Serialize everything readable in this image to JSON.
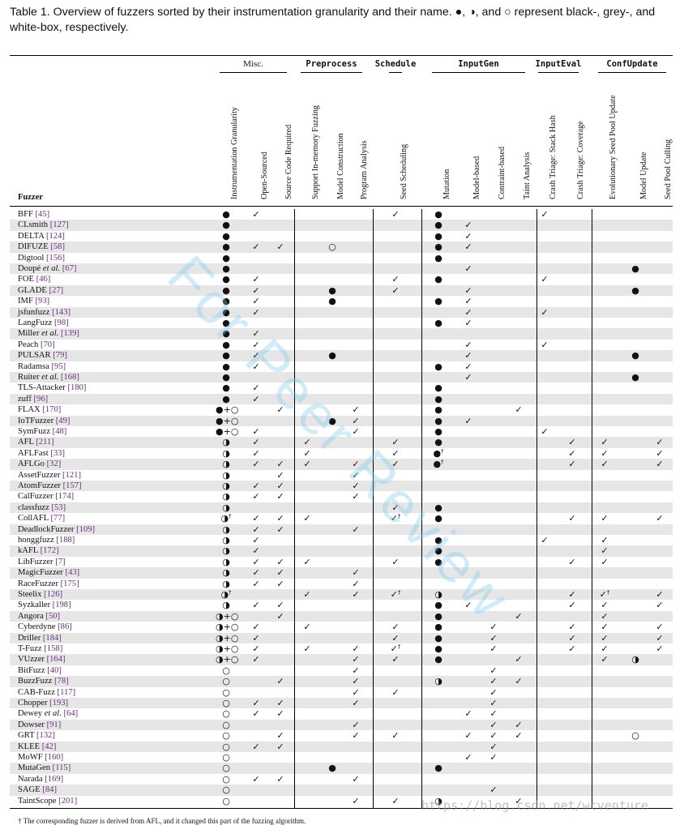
{
  "caption": "Table 1. Overview of fuzzers sorted by their instrumentation granularity and their name. ●, ◑, and ○ represent black-, grey-, and white-box, respectively.",
  "groups": [
    "Misc.",
    "Preprocess",
    "Schedule",
    "InputGen",
    "InputEval",
    "ConfUpdate"
  ],
  "fuzzer_header": "Fuzzer",
  "columns": [
    "Instrumentation Granularity",
    "Open-Sourced",
    "Source Code Required",
    "Support In-memory Fuzzing",
    "Model Construction",
    "Program Analysis",
    "Seed Scheduling",
    "Mutation",
    "Model-based",
    "Contraint-based",
    "Taint Analysis",
    "Crash Triage: Stack Hash",
    "Crash Triage: Coverage",
    "Evolutionary Seed Pool Update",
    "Model Update",
    "Seed Pool Culling"
  ],
  "rows": [
    {
      "n": "BFF",
      "r": "[45]",
      "c": [
        "●",
        "✓",
        "",
        "",
        "",
        "",
        "✓",
        "●",
        "",
        "",
        "",
        "✓",
        "",
        "",
        "",
        ""
      ]
    },
    {
      "n": "CLsmith",
      "r": "[127]",
      "c": [
        "●",
        "",
        "",
        "",
        "",
        "",
        "",
        "●",
        "✓",
        "",
        "",
        "",
        "",
        "",
        "",
        ""
      ]
    },
    {
      "n": "DELTA",
      "r": "[124]",
      "c": [
        "●",
        "",
        "",
        "",
        "",
        "",
        "",
        "●",
        "✓",
        "",
        "",
        "",
        "",
        "",
        "",
        ""
      ]
    },
    {
      "n": "DIFUZE",
      "r": "[58]",
      "c": [
        "●",
        "✓",
        "✓",
        "",
        "○",
        "",
        "",
        "●",
        "✓",
        "",
        "",
        "",
        "",
        "",
        "",
        ""
      ]
    },
    {
      "n": "Digtool",
      "r": "[156]",
      "c": [
        "●",
        "",
        "",
        "",
        "",
        "",
        "",
        "●",
        "",
        "",
        "",
        "",
        "",
        "",
        "",
        ""
      ]
    },
    {
      "n": "Doupé et al.",
      "r": "[67]",
      "c": [
        "●",
        "",
        "",
        "",
        "",
        "",
        "",
        "",
        "✓",
        "",
        "",
        "",
        "",
        "",
        "●",
        ""
      ]
    },
    {
      "n": "FOE",
      "r": "[46]",
      "c": [
        "●",
        "✓",
        "",
        "",
        "",
        "",
        "✓",
        "●",
        "",
        "",
        "",
        "✓",
        "",
        "",
        "",
        ""
      ]
    },
    {
      "n": "GLADE",
      "r": "[27]",
      "c": [
        "●",
        "✓",
        "",
        "",
        "●",
        "",
        "✓",
        "",
        "✓",
        "",
        "",
        "",
        "",
        "",
        "●",
        ""
      ]
    },
    {
      "n": "IMF",
      "r": "[93]",
      "c": [
        "●",
        "✓",
        "",
        "",
        "●",
        "",
        "",
        "●",
        "✓",
        "",
        "",
        "",
        "",
        "",
        "",
        ""
      ]
    },
    {
      "n": "jsfunfuzz",
      "r": "[143]",
      "c": [
        "●",
        "✓",
        "",
        "",
        "",
        "",
        "",
        "",
        "✓",
        "",
        "",
        "✓",
        "",
        "",
        "",
        ""
      ]
    },
    {
      "n": "LangFuzz",
      "r": "[98]",
      "c": [
        "●",
        "",
        "",
        "",
        "",
        "",
        "",
        "●",
        "✓",
        "",
        "",
        "",
        "",
        "",
        "",
        ""
      ]
    },
    {
      "n": "Miller et al.",
      "r": "[139]",
      "c": [
        "●",
        "✓",
        "",
        "",
        "",
        "",
        "",
        "",
        "",
        "",
        "",
        "",
        "",
        "",
        "",
        ""
      ]
    },
    {
      "n": "Peach",
      "r": "[70]",
      "c": [
        "●",
        "✓",
        "",
        "",
        "",
        "",
        "",
        "",
        "✓",
        "",
        "",
        "✓",
        "",
        "",
        "",
        ""
      ]
    },
    {
      "n": "PULSAR",
      "r": "[79]",
      "c": [
        "●",
        "✓",
        "",
        "",
        "●",
        "",
        "",
        "",
        "✓",
        "",
        "",
        "",
        "",
        "",
        "●",
        ""
      ]
    },
    {
      "n": "Radamsa",
      "r": "[95]",
      "c": [
        "●",
        "✓",
        "",
        "",
        "",
        "",
        "",
        "●",
        "✓",
        "",
        "",
        "",
        "",
        "",
        "",
        ""
      ]
    },
    {
      "n": "Ruiter et al.",
      "r": "[168]",
      "c": [
        "●",
        "",
        "",
        "",
        "",
        "",
        "",
        "",
        "✓",
        "",
        "",
        "",
        "",
        "",
        "●",
        ""
      ]
    },
    {
      "n": "TLS-Attacker",
      "r": "[180]",
      "c": [
        "●",
        "✓",
        "",
        "",
        "",
        "",
        "",
        "●",
        "",
        "",
        "",
        "",
        "",
        "",
        "",
        ""
      ]
    },
    {
      "n": "zuff",
      "r": "[96]",
      "c": [
        "●",
        "✓",
        "",
        "",
        "",
        "",
        "",
        "●",
        "",
        "",
        "",
        "",
        "",
        "",
        "",
        ""
      ]
    },
    {
      "n": "FLAX",
      "r": "[170]",
      "c": [
        "●+○",
        "",
        "✓",
        "",
        "",
        "✓",
        "",
        "●",
        "",
        "",
        "✓",
        "",
        "",
        "",
        "",
        ""
      ]
    },
    {
      "n": "IoTFuzzer",
      "r": "[49]",
      "c": [
        "●+○",
        "",
        "",
        "",
        "●",
        "✓",
        "",
        "●",
        "✓",
        "",
        "",
        "",
        "",
        "",
        "",
        ""
      ]
    },
    {
      "n": "SymFuzz",
      "r": "[48]",
      "c": [
        "●+○",
        "✓",
        "",
        "",
        "",
        "✓",
        "",
        "●",
        "",
        "",
        "",
        "✓",
        "",
        "",
        "",
        ""
      ]
    },
    {
      "n": "AFL",
      "r": "[211]",
      "c": [
        "◑",
        "✓",
        "",
        "✓",
        "",
        "",
        "✓",
        "●",
        "",
        "",
        "",
        "",
        "✓",
        "✓",
        "",
        "✓"
      ]
    },
    {
      "n": "AFLFast",
      "r": "[33]",
      "c": [
        "◑",
        "✓",
        "",
        "✓",
        "",
        "",
        "✓",
        "●†",
        "",
        "",
        "",
        "",
        "✓",
        "✓",
        "",
        "✓"
      ]
    },
    {
      "n": "AFLGo",
      "r": "[32]",
      "c": [
        "◑",
        "✓",
        "✓",
        "✓",
        "",
        "✓",
        "✓",
        "●†",
        "",
        "",
        "",
        "",
        "✓",
        "✓",
        "",
        "✓"
      ]
    },
    {
      "n": "AssetFuzzer",
      "r": "[121]",
      "c": [
        "◑",
        "",
        "✓",
        "",
        "",
        "✓",
        "",
        "",
        "",
        "",
        "",
        "",
        "",
        "",
        "",
        ""
      ]
    },
    {
      "n": "AtomFuzzer",
      "r": "[157]",
      "c": [
        "◑",
        "✓",
        "✓",
        "",
        "",
        "✓",
        "",
        "",
        "",
        "",
        "",
        "",
        "",
        "",
        "",
        ""
      ]
    },
    {
      "n": "CalFuzzer",
      "r": "[174]",
      "c": [
        "◑",
        "✓",
        "✓",
        "",
        "",
        "✓",
        "",
        "",
        "",
        "",
        "",
        "",
        "",
        "",
        "",
        ""
      ]
    },
    {
      "n": "classfuzz",
      "r": "[53]",
      "c": [
        "◑",
        "",
        "",
        "",
        "",
        "",
        "✓",
        "●",
        "",
        "",
        "",
        "",
        "",
        "",
        "",
        ""
      ]
    },
    {
      "n": "CollAFL",
      "r": "[77]",
      "c": [
        "◑†",
        "✓",
        "✓",
        "✓",
        "",
        "",
        "✓†",
        "●",
        "",
        "",
        "",
        "",
        "✓",
        "✓",
        "",
        "✓"
      ]
    },
    {
      "n": "DeadlockFuzzer",
      "r": "[109]",
      "c": [
        "◑",
        "✓",
        "✓",
        "",
        "",
        "✓",
        "",
        "",
        "",
        "",
        "",
        "",
        "",
        "",
        "",
        ""
      ]
    },
    {
      "n": "honggfuzz",
      "r": "[188]",
      "c": [
        "◑",
        "✓",
        "",
        "",
        "",
        "",
        "",
        "●",
        "",
        "",
        "",
        "✓",
        "",
        "✓",
        "",
        ""
      ]
    },
    {
      "n": "kAFL",
      "r": "[172]",
      "c": [
        "◑",
        "✓",
        "",
        "",
        "",
        "",
        "",
        "●",
        "",
        "",
        "",
        "",
        "",
        "✓",
        "",
        ""
      ]
    },
    {
      "n": "LibFuzzer",
      "r": "[7]",
      "c": [
        "◑",
        "✓",
        "✓",
        "✓",
        "",
        "",
        "✓",
        "●",
        "",
        "",
        "",
        "",
        "✓",
        "✓",
        "",
        ""
      ]
    },
    {
      "n": "MagicFuzzer",
      "r": "[43]",
      "c": [
        "◑",
        "✓",
        "✓",
        "",
        "",
        "✓",
        "",
        "",
        "",
        "",
        "",
        "",
        "",
        "",
        "",
        ""
      ]
    },
    {
      "n": "RaceFuzzer",
      "r": "[175]",
      "c": [
        "◑",
        "✓",
        "✓",
        "",
        "",
        "✓",
        "",
        "",
        "",
        "",
        "",
        "",
        "",
        "",
        "",
        ""
      ]
    },
    {
      "n": "Steelix",
      "r": "[126]",
      "c": [
        "◑†",
        "",
        "",
        "✓",
        "",
        "✓",
        "✓†",
        "◑",
        "",
        "",
        "",
        "",
        "✓",
        "✓†",
        "",
        "✓"
      ]
    },
    {
      "n": "Syzkaller",
      "r": "[198]",
      "c": [
        "◑",
        "✓",
        "✓",
        "",
        "",
        "",
        "",
        "●",
        "✓",
        "",
        "",
        "",
        "✓",
        "✓",
        "",
        "✓"
      ]
    },
    {
      "n": "Angora",
      "r": "[50]",
      "c": [
        "◑+○",
        "",
        "✓",
        "",
        "",
        "",
        "",
        "●",
        "",
        "",
        "✓",
        "",
        "",
        "✓",
        "",
        ""
      ]
    },
    {
      "n": "Cyberdyne",
      "r": "[86]",
      "c": [
        "◑+○",
        "✓",
        "",
        "✓",
        "",
        "",
        "✓",
        "●",
        "",
        "✓",
        "",
        "",
        "✓",
        "✓",
        "",
        "✓"
      ]
    },
    {
      "n": "Driller",
      "r": "[184]",
      "c": [
        "◑+○",
        "✓",
        "",
        "",
        "",
        "",
        "✓",
        "●",
        "",
        "✓",
        "",
        "",
        "✓",
        "✓",
        "",
        "✓"
      ]
    },
    {
      "n": "T-Fuzz",
      "r": "[158]",
      "c": [
        "◑+○",
        "✓",
        "",
        "✓",
        "",
        "✓",
        "✓†",
        "●",
        "",
        "✓",
        "",
        "",
        "✓",
        "✓",
        "",
        "✓"
      ]
    },
    {
      "n": "VUzzer",
      "r": "[164]",
      "c": [
        "◑+○",
        "✓",
        "",
        "",
        "",
        "✓",
        "✓",
        "●",
        "",
        "",
        "✓",
        "",
        "",
        "✓",
        "◑",
        ""
      ]
    },
    {
      "n": "BitFuzz",
      "r": "[40]",
      "c": [
        "○",
        "",
        "",
        "",
        "",
        "✓",
        "",
        "",
        "",
        "✓",
        "",
        "",
        "",
        "",
        "",
        ""
      ]
    },
    {
      "n": "BuzzFuzz",
      "r": "[78]",
      "c": [
        "○",
        "",
        "✓",
        "",
        "",
        "✓",
        "",
        "◑",
        "",
        "✓",
        "✓",
        "",
        "",
        "",
        "",
        ""
      ]
    },
    {
      "n": "CAB-Fuzz",
      "r": "[117]",
      "c": [
        "○",
        "",
        "",
        "",
        "",
        "✓",
        "✓",
        "",
        "",
        "✓",
        "",
        "",
        "",
        "",
        "",
        ""
      ]
    },
    {
      "n": "Chopper",
      "r": "[193]",
      "c": [
        "○",
        "✓",
        "✓",
        "",
        "",
        "✓",
        "",
        "",
        "",
        "✓",
        "",
        "",
        "",
        "",
        "",
        ""
      ]
    },
    {
      "n": "Dewey et al.",
      "r": "[64]",
      "c": [
        "○",
        "✓",
        "✓",
        "",
        "",
        "",
        "",
        "",
        "✓",
        "✓",
        "",
        "",
        "",
        "",
        "",
        ""
      ]
    },
    {
      "n": "Dowser",
      "r": "[91]",
      "c": [
        "○",
        "",
        "",
        "",
        "",
        "✓",
        "",
        "",
        "",
        "✓",
        "✓",
        "",
        "",
        "",
        "",
        ""
      ]
    },
    {
      "n": "GRT",
      "r": "[132]",
      "c": [
        "○",
        "",
        "✓",
        "",
        "",
        "✓",
        "✓",
        "",
        "✓",
        "✓",
        "✓",
        "",
        "",
        "",
        "○",
        ""
      ]
    },
    {
      "n": "KLEE",
      "r": "[42]",
      "c": [
        "○",
        "✓",
        "✓",
        "",
        "",
        "",
        "",
        "",
        "",
        "✓",
        "",
        "",
        "",
        "",
        "",
        ""
      ]
    },
    {
      "n": "MoWF",
      "r": "[160]",
      "c": [
        "○",
        "",
        "",
        "",
        "",
        "",
        "",
        "",
        "✓",
        "✓",
        "",
        "",
        "",
        "",
        "",
        ""
      ]
    },
    {
      "n": "MutaGen",
      "r": "[115]",
      "c": [
        "○",
        "",
        "",
        "",
        "●",
        "",
        "",
        "●",
        "",
        "",
        "",
        "",
        "",
        "",
        "",
        ""
      ]
    },
    {
      "n": "Narada",
      "r": "[169]",
      "c": [
        "○",
        "✓",
        "✓",
        "",
        "",
        "✓",
        "",
        "",
        "",
        "",
        "",
        "",
        "",
        "",
        "",
        ""
      ]
    },
    {
      "n": "SAGE",
      "r": "[84]",
      "c": [
        "○",
        "",
        "",
        "",
        "",
        "",
        "",
        "",
        "",
        "✓",
        "",
        "",
        "",
        "",
        "",
        ""
      ]
    },
    {
      "n": "TaintScope",
      "r": "[201]",
      "c": [
        "○",
        "",
        "",
        "",
        "",
        "✓",
        "✓",
        "◑",
        "",
        "",
        "✓",
        "",
        "",
        "",
        "",
        ""
      ]
    }
  ],
  "footnote": "† The corresponding fuzzer is derived from AFL, and it changed this part of the fuzzing algorithm.",
  "watermark": "https://blog.csdn.net/wcventure",
  "overlay_watermark": "For Peer Review"
}
